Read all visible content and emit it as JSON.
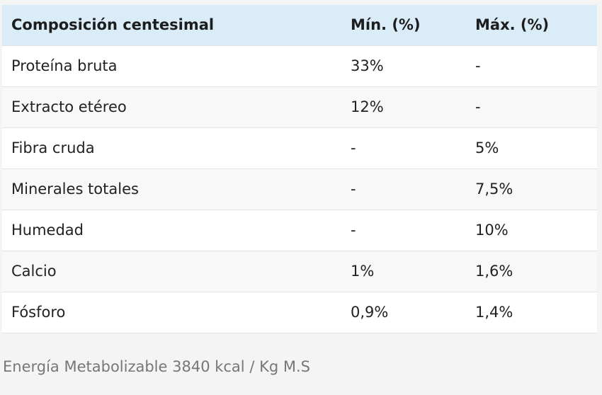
{
  "table": {
    "header": [
      "Composición centesimal",
      "Mín. (%)",
      "Máx. (%)"
    ],
    "rows": [
      [
        "Proteína bruta",
        "33%",
        "-"
      ],
      [
        "Extracto etéreo",
        "12%",
        "-"
      ],
      [
        "Fibra cruda",
        "-",
        "5%"
      ],
      [
        "Minerales totales",
        "-",
        "7,5%"
      ],
      [
        "Humedad",
        "-",
        "10%"
      ],
      [
        "Calcio",
        "1%",
        "1,6%"
      ],
      [
        "Fósforo",
        "0,9%",
        "1,4%"
      ]
    ]
  },
  "footer": {
    "note": "Energía Metabolizable 3840 kcal / Kg M.S"
  }
}
